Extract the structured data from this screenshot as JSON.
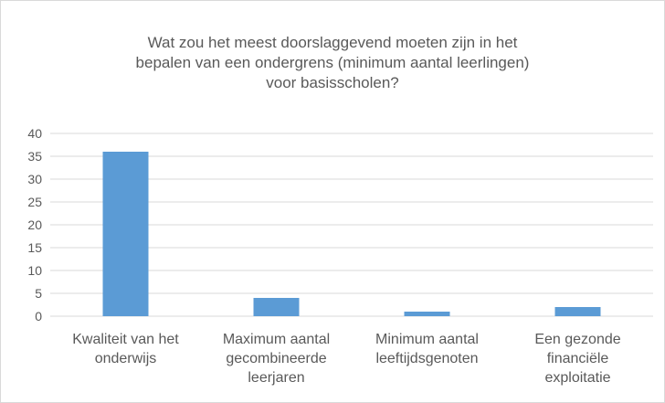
{
  "chart_data": {
    "type": "bar",
    "title": "Wat zou het meest doorslaggevend moeten zijn in het bepalen van een ondergrens (minimum aantal leerlingen) voor basisscholen?",
    "categories": [
      "Kwaliteit van het onderwijs",
      "Maximum aantal gecombineerde leerjaren",
      "Minimum aantal leeftijdsgenoten",
      "Een gezonde financiële exploitatie"
    ],
    "values": [
      36,
      4,
      1,
      2
    ],
    "color": "#5b9bd5",
    "ylim": [
      0,
      40
    ],
    "yticks": [
      0,
      5,
      10,
      15,
      20,
      25,
      30,
      35,
      40
    ],
    "grid": true
  }
}
